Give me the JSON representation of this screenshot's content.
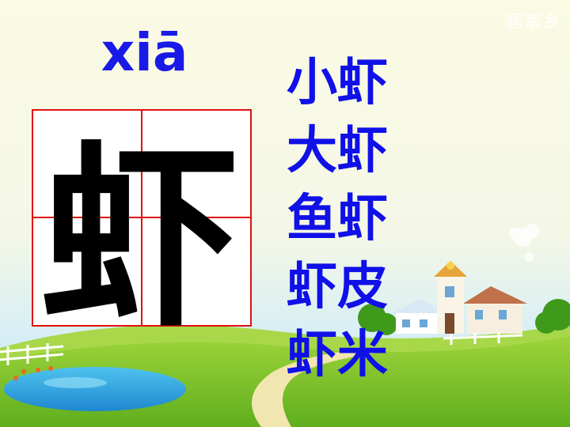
{
  "watermark": "画家乡",
  "pinyin": "xiā",
  "character": "虾",
  "words": [
    "小虾",
    "大虾",
    "鱼虾",
    "虾皮",
    "虾米"
  ],
  "colors": {
    "sky_top": "#fbfbe6",
    "sky_bottom": "#d7f0f7",
    "grass": "#7cc52a",
    "text_blue": "#1a1ae6",
    "grid_red": "#e01010"
  }
}
